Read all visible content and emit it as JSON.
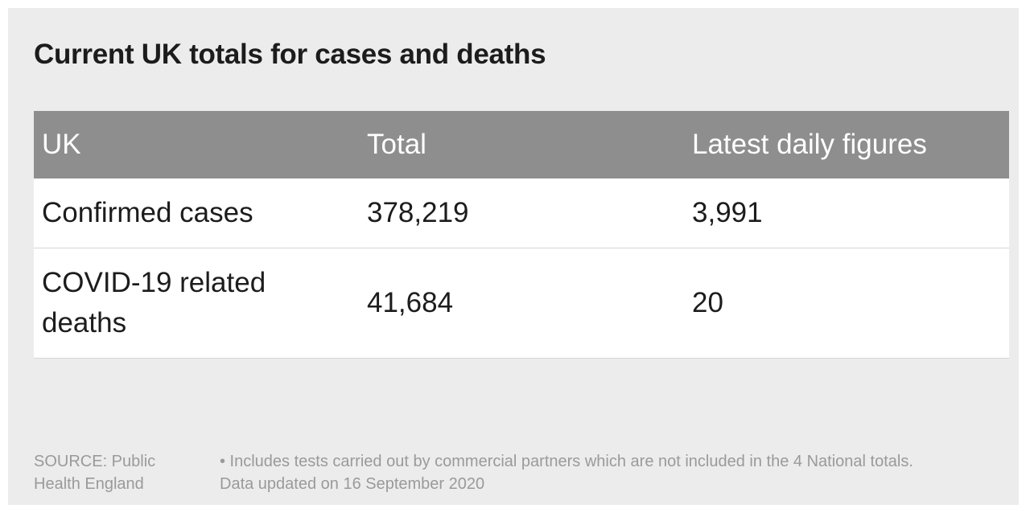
{
  "chart_data": {
    "type": "table",
    "title": "Current UK totals for cases and deaths",
    "columns": [
      "UK",
      "Total",
      "Latest daily figures"
    ],
    "rows": [
      {
        "label": "Confirmed cases",
        "total": "378,219",
        "latest": "3,991"
      },
      {
        "label": "COVID-19 related deaths",
        "total": "41,684",
        "latest": "20"
      }
    ],
    "source": "SOURCE: Public Health England",
    "notes": [
      "• Includes tests carried out by commercial partners which are not included in the 4 National totals.",
      "Data updated on 16 September 2020"
    ]
  },
  "colors": {
    "header_background": "#8e8e8e",
    "header_text": "#ffffff",
    "panel_background": "#ececec",
    "row_background": "#ffffff",
    "body_text": "#1c1c1c",
    "footnote_text": "#9a9a9a"
  }
}
